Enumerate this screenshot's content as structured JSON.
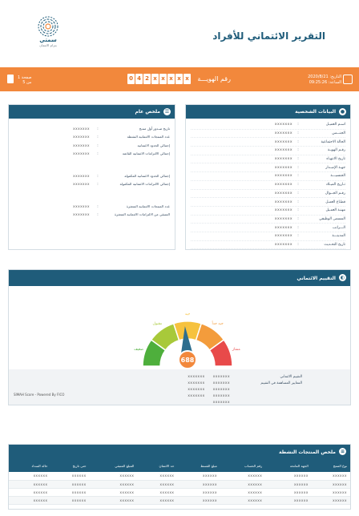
{
  "header": {
    "title": "التقرير الائتماني للأفراد",
    "logo_name": "سمتي",
    "logo_sub": "بتزام الانتمان"
  },
  "info_bar": {
    "date_line": "التاريخ: 2020/8/21",
    "time_line": "الساعة: 09:25:26",
    "id_label": "رقم الهويـــة",
    "id_chars": [
      "0",
      "4",
      "2",
      "x",
      "x",
      "x",
      "x",
      "x"
    ],
    "page_line1": "صفحة 1",
    "page_line2": "من 5"
  },
  "personal": {
    "title": "البيانات الشخصية",
    "rows": [
      {
        "label": "اسـم العميـل",
        "sep": ":",
        "value": "xxxxxxx"
      },
      {
        "label": "الجنـــس",
        "sep": ":",
        "value": "xxxxxxx"
      },
      {
        "label": "الحالة الاجتماعية",
        "sep": ":",
        "value": "xxxxxxx"
      },
      {
        "label": "رقـم الهويـة",
        "sep": ":",
        "value": "xxxxxxx"
      },
      {
        "label": "تاريخ الانتهـاء",
        "sep": ":",
        "value": "xxxxxxx"
      },
      {
        "label": "جهـة الإصـدار",
        "sep": ":",
        "value": "xxxxxxx"
      },
      {
        "label": "الجنسيـــة",
        "sep": ":",
        "value": "xxxxxxx"
      },
      {
        "label": "تـاريخ الميـلاد",
        "sep": ":",
        "value": "xxxxxxx"
      },
      {
        "label": "رقـم الجــوال",
        "sep": ":",
        "value": "xxxxxxx"
      },
      {
        "label": "قطـاع العمـل",
        "sep": ":",
        "value": "xxxxxxx"
      },
      {
        "label": "مهنـة العمـيل",
        "sep": ":",
        "value": "xxxxxxx"
      },
      {
        "label": "المسمى الوظيفي",
        "sep": ":",
        "value": "xxxxxxx"
      },
      {
        "label": "الـــراتب",
        "sep": ":",
        "value": "xxxxxxx"
      },
      {
        "label": "المدينـــة",
        "sep": ":",
        "value": "xxxxxxx"
      },
      {
        "label": "تاريخ التحـديث",
        "sep": ":",
        "value": "xxxxxxx"
      }
    ]
  },
  "summary": {
    "title": "ملخص عام",
    "rows_a": [
      {
        "label": "تاريخ صـدور أول منتـج",
        "sep": ":",
        "value": "xxxxxxx"
      },
      {
        "label": "عدد المنتجات الائتمانية النشطة",
        "sep": ":",
        "value": "xxxxxxx"
      },
      {
        "label": "إجمالي الحدود الائتمانية",
        "sep": ":",
        "value": "xxxxxxx"
      },
      {
        "label": "إجمالي الالتزامات الائتمانية القائمة",
        "sep": ":",
        "value": "xxxxxxx"
      }
    ],
    "rows_b": [
      {
        "label": "إجمالي الحدود الائتمانية المكفولة",
        "sep": ":",
        "value": "xxxxxxx"
      },
      {
        "label": "إجمالي الالتزامات الائتمانية المكفولة",
        "sep": ":",
        "value": "xxxxxxx"
      }
    ],
    "rows_c": [
      {
        "label": "عدد المنتجات الائتمانية المتعثرة",
        "sep": ":",
        "value": "xxxxxxx"
      },
      {
        "label": "المتبقي من الالتزامات الائتمانية المتعثرة",
        "sep": ":",
        "value": "xxxxxxx"
      }
    ]
  },
  "credit": {
    "title": "التقييم الائتماني",
    "score": "688",
    "score_fraction": 0.48,
    "gauge_labels": [
      "ضعيف",
      "مقبول",
      "جيد",
      "جيد جداً",
      "ممتاز"
    ],
    "rows": [
      {
        "label": "التقييم الائتماني",
        "values": [
          "xxxxxxx",
          "xxxxxxx"
        ]
      },
      {
        "label": "المعايير المساهمة في التقييم",
        "values": [
          "xxxxxxx",
          "xxxxxxx"
        ]
      },
      {
        "label": "",
        "values": [
          "xxxxxxx",
          "xxxxxxx"
        ]
      },
      {
        "label": "",
        "values": [
          "xxxxxxx",
          "xxxxxxx"
        ]
      },
      {
        "label": "",
        "values": [
          "xxxxxxx"
        ]
      }
    ],
    "powered": "SIMAH Score - Powered By FICO",
    "colors": {
      "red": "#e84a4a",
      "orange": "#f39c3c",
      "yellow": "#f6c23e",
      "lime": "#a8c93a",
      "green": "#4eaf3c",
      "needle": "#2d6e8e",
      "score_bg": "#f2883c"
    }
  },
  "active": {
    "title": "ملخص المنتجات النشطة",
    "columns": [
      "نوع المنتج",
      "الجهة المانحة",
      "رقم الحساب",
      "مبلغ القسط",
      "حد الائتمان",
      "المبلغ المتبقي",
      "حتى تاريخ",
      "حالة السداد"
    ],
    "rows": [
      [
        "xxxxxx",
        "xxxxxx",
        "xxxxxx",
        "xxxxxx",
        "xxxxxx",
        "xxxxxx",
        "xxxxxx",
        "xxxxxx"
      ],
      [
        "xxxxxx",
        "xxxxxx",
        "xxxxxx",
        "xxxxxx",
        "xxxxxx",
        "xxxxxx",
        "xxxxxx",
        "xxxxxx"
      ],
      [
        "xxxxxx",
        "xxxxxx",
        "xxxxxx",
        "xxxxxx",
        "xxxxxx",
        "xxxxxx",
        "xxxxxx",
        "xxxxxx"
      ],
      [
        "xxxxxx",
        "xxxxxx",
        "xxxxxx",
        "xxxxxx",
        "xxxxxx",
        "xxxxxx",
        "xxxxxx",
        "xxxxxx"
      ]
    ]
  }
}
